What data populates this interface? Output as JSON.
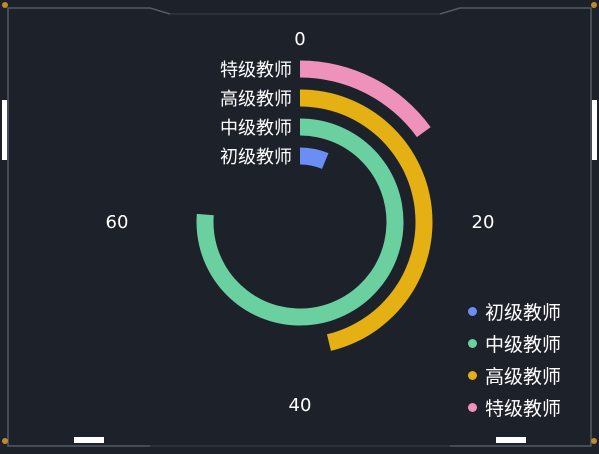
{
  "chart_data": {
    "type": "polar-bar",
    "title": "",
    "angle_axis": {
      "min": 0,
      "max": 80,
      "ticks": [
        0,
        20,
        40,
        60
      ]
    },
    "categories": [
      "初级教师",
      "中级教师",
      "高级教师",
      "特级教师"
    ],
    "values": [
      5,
      61,
      37,
      12
    ],
    "colors": [
      "#6a8ef3",
      "#6ad0a0",
      "#e4b014",
      "#ee92bb"
    ],
    "legend_position": "bottom-right"
  }
}
